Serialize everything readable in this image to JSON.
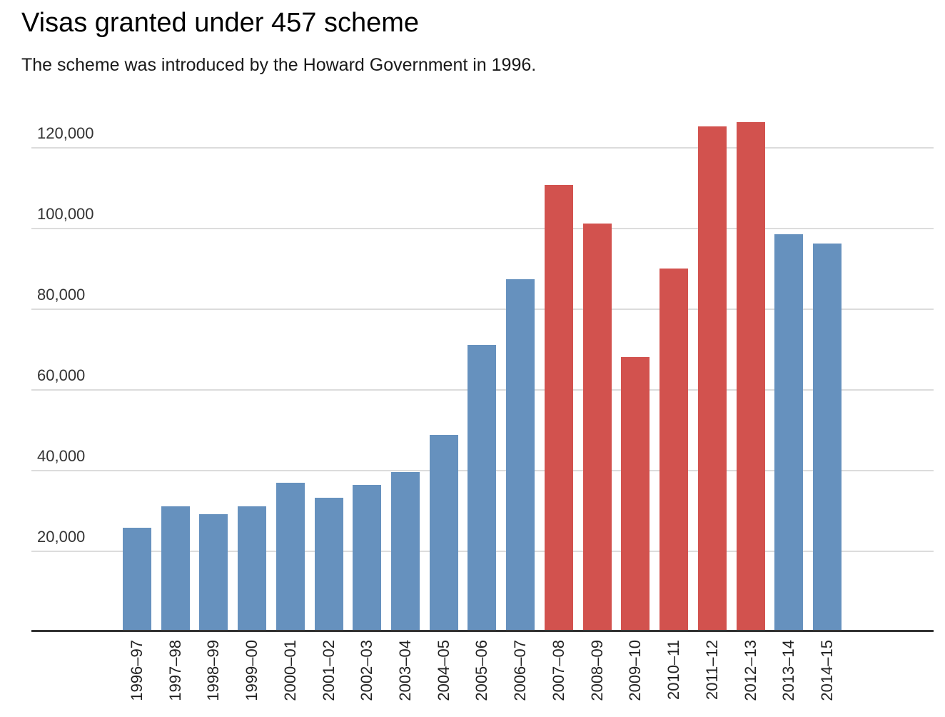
{
  "header": {
    "title": "Visas granted under 457 scheme",
    "subtitle": "The scheme was introduced by the Howard Government in 1996."
  },
  "chart_data": {
    "type": "bar",
    "title": "Visas granted under 457 scheme",
    "subtitle": "The scheme was introduced by the Howard Government in 1996.",
    "categories": [
      "1996–97",
      "1997–98",
      "1998–99",
      "1999–00",
      "2000–01",
      "2001–02",
      "2002–03",
      "2003–04",
      "2004–05",
      "2005–06",
      "2006–07",
      "2007–08",
      "2008–09",
      "2009–10",
      "2010–11",
      "2011–12",
      "2012–13",
      "2013–14",
      "2014–15"
    ],
    "values": [
      25800,
      31100,
      29200,
      31100,
      37000,
      33300,
      36500,
      39600,
      48900,
      71200,
      87400,
      110800,
      101200,
      68100,
      90100,
      125300,
      126400,
      98600,
      96300
    ],
    "highlighted": [
      false,
      false,
      false,
      false,
      false,
      false,
      false,
      false,
      false,
      false,
      false,
      true,
      true,
      true,
      true,
      true,
      true,
      false,
      false
    ],
    "y_ticks": {
      "values": [
        20000,
        40000,
        60000,
        80000,
        100000,
        120000
      ],
      "labels": [
        "20,000",
        "40,000",
        "60,000",
        "80,000",
        "100,000",
        "120,000"
      ]
    },
    "ylim": [
      0,
      128000
    ],
    "xlabel": "",
    "ylabel": "",
    "legend": "none",
    "grid": "horizontal",
    "colors": {
      "bar_default": "#6691be",
      "bar_highlight": "#d2524e",
      "gridline": "#dcdcdc",
      "baseline": "#333333",
      "y_tick_label": "#333333",
      "x_tick_label": "#222222",
      "title": "#000000",
      "subtitle": "#1a1a1a"
    }
  }
}
